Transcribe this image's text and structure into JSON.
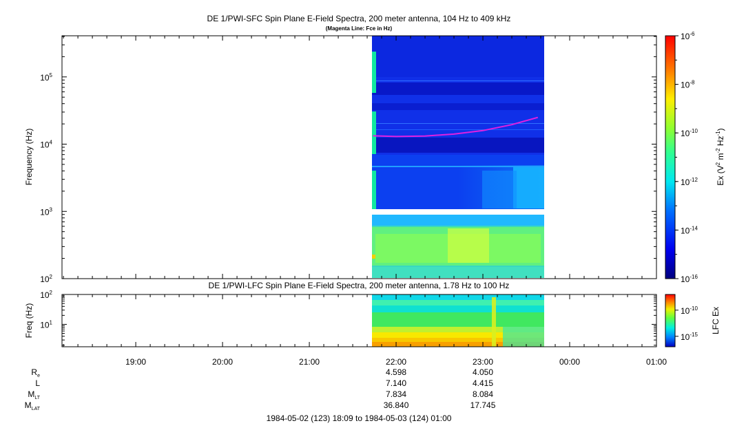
{
  "top_panel": {
    "title": "DE 1/PWI-SFC  Spin Plane E-Field Spectra, 200 meter antenna, 104 Hz to 409 kHz",
    "subtitle": "(Magenta Line: Fce in Hz)",
    "ylabel": "Frequency (Hz)",
    "ytick_labels": [
      {
        "base": "10",
        "exp": "2"
      },
      {
        "base": "10",
        "exp": "3"
      },
      {
        "base": "10",
        "exp": "4"
      },
      {
        "base": "10",
        "exp": "5"
      }
    ],
    "colorbar": {
      "label": "Ex (V2 m-2 Hz-1)",
      "label_parts": [
        "Ex (V",
        "2",
        " m",
        "-2",
        " Hz",
        "-1",
        ")"
      ],
      "tick_labels": [
        {
          "base": "10",
          "exp": "-6"
        },
        {
          "base": "10",
          "exp": "-8"
        },
        {
          "base": "10",
          "exp": "-10"
        },
        {
          "base": "10",
          "exp": "-12"
        },
        {
          "base": "10",
          "exp": "-14"
        },
        {
          "base": "10",
          "exp": "-16"
        }
      ]
    },
    "line_color": "#e020e0"
  },
  "bottom_panel": {
    "title": "DE 1/PWI-LFC  Spin Plane E-Field Spectra, 200 meter antenna, 1.78 Hz to 100 Hz",
    "ylabel": "Freq (Hz)",
    "ytick_labels": [
      {
        "base": "10",
        "exp": "1"
      },
      {
        "base": "10",
        "exp": "2"
      }
    ],
    "colorbar": {
      "label": "LFC Ex",
      "tick_labels": [
        {
          "base": "10",
          "exp": "-10"
        },
        {
          "base": "10",
          "exp": "-15"
        }
      ]
    }
  },
  "x_axis": {
    "tick_labels": [
      "19:00",
      "20:00",
      "21:00",
      "22:00",
      "23:00",
      "00:00",
      "01:00"
    ]
  },
  "ephemeris": {
    "rows": [
      {
        "label": "R",
        "sub": "e",
        "values": [
          "4.598",
          "4.050"
        ]
      },
      {
        "label": "L",
        "sub": "",
        "values": [
          "7.140",
          "4.415"
        ]
      },
      {
        "label": "M",
        "sub": "LT",
        "values": [
          "7.834",
          "8.084"
        ]
      },
      {
        "label": "M",
        "sub": "LAT",
        "values": [
          "36.840",
          "17.745"
        ]
      }
    ]
  },
  "footer": "1984-05-02 (123) 18:09 to 1984-05-03 (124) 01:00",
  "chart_data": [
    {
      "type": "heatmap",
      "title": "DE 1/PWI-SFC  Spin Plane E-Field Spectra, 200 meter antenna, 104 Hz to 409 kHz",
      "subtitle": "(Magenta Line: Fce in Hz)",
      "xlabel": "",
      "ylabel": "Frequency (Hz)",
      "y_scale": "log",
      "xlim": [
        "1984-05-02 18:09",
        "1984-05-03 01:00"
      ],
      "ylim": [
        100,
        409000
      ],
      "data_interval": [
        "21:44",
        "23:39"
      ],
      "color_scale": "log",
      "clim": [
        1e-16,
        1e-06
      ],
      "colorbar_label": "Ex (V2 m-2 Hz-1)",
      "series": [
        {
          "name": "Fce",
          "x": [
            "21:44",
            "22:00",
            "22:20",
            "22:40",
            "23:00",
            "23:20",
            "23:38"
          ],
          "y": [
            13300,
            13000,
            13200,
            14100,
            15900,
            19500,
            25000
          ]
        }
      ]
    },
    {
      "type": "heatmap",
      "title": "DE 1/PWI-LFC  Spin Plane E-Field Spectra, 200 meter antenna, 1.78 Hz to 100 Hz",
      "xlabel": "",
      "ylabel": "Freq (Hz)",
      "y_scale": "log",
      "xlim": [
        "1984-05-02 18:09",
        "1984-05-03 01:00"
      ],
      "ylim": [
        1.78,
        100
      ],
      "data_interval": [
        "21:44",
        "23:39"
      ],
      "color_scale": "log",
      "colorbar_label": "LFC Ex"
    }
  ]
}
